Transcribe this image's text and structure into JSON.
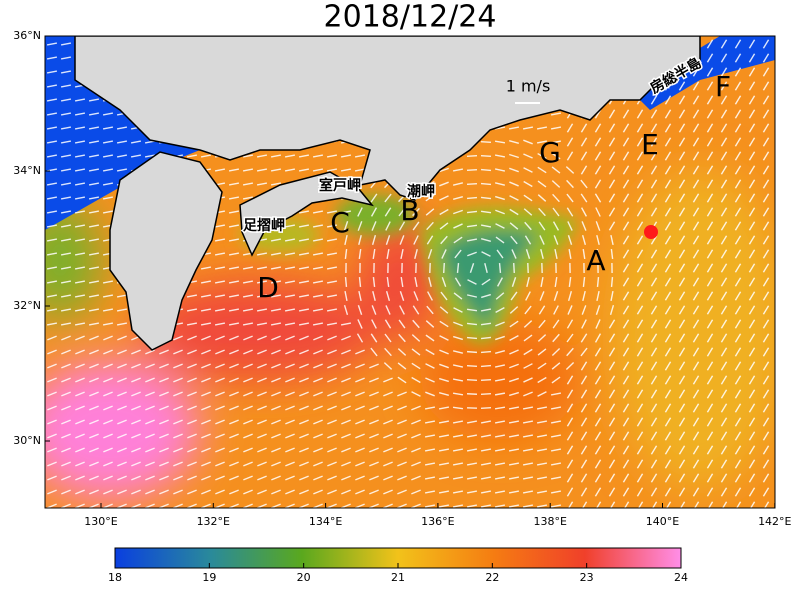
{
  "title": "2018/12/24",
  "latitude_labels": [
    "36°N",
    "34°N",
    "32°N",
    "30°N"
  ],
  "longitude_labels": [
    "130°E",
    "132°E",
    "134°E",
    "136°E",
    "138°E",
    "140°E",
    "142°E"
  ],
  "scale_label": "1 m/s",
  "region_labels": [
    "A",
    "B",
    "C",
    "D",
    "E",
    "F",
    "G"
  ],
  "place_names": [
    "室戸岬",
    "潮岬",
    "足摺岬",
    "房総半島"
  ],
  "colorbar": {
    "range": [
      18,
      24
    ],
    "ticks": [
      18,
      19,
      20,
      21,
      22,
      23,
      24
    ]
  }
}
